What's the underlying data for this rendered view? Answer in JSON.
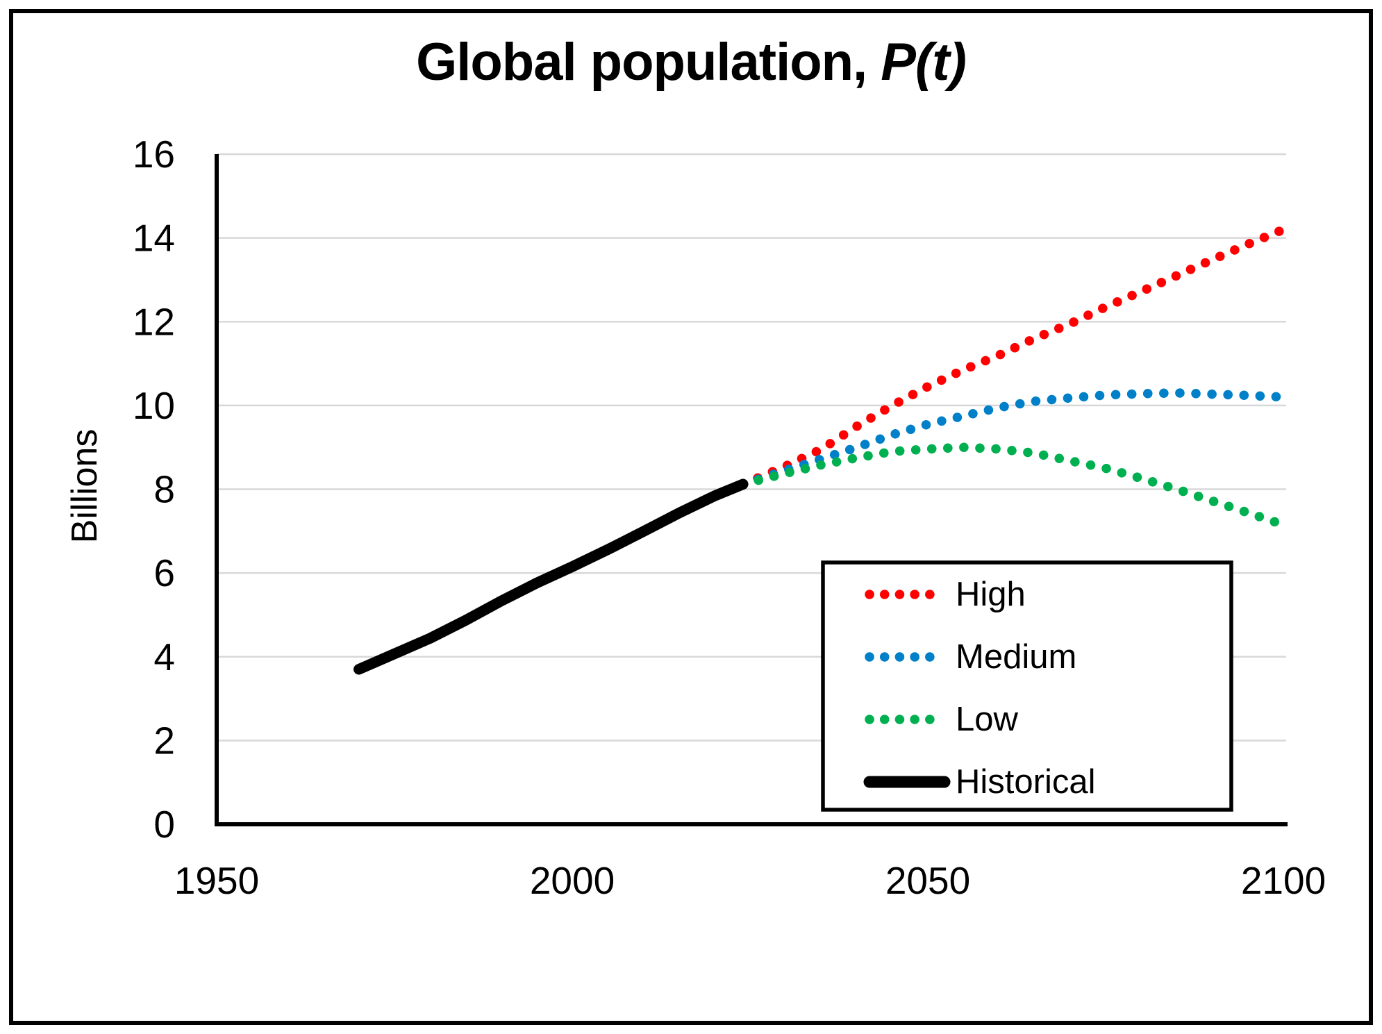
{
  "page": {
    "background_color": "#ffffff",
    "border_color": "#000000"
  },
  "chart_data": {
    "type": "line",
    "title_text": "Global population, ",
    "title_math": "P(t)",
    "ylabel": "Billions",
    "xlim": [
      1950,
      2100
    ],
    "ylim": [
      0,
      16
    ],
    "x_ticks": [
      1950,
      2000,
      2050,
      2100
    ],
    "y_ticks": [
      0,
      2,
      4,
      6,
      8,
      10,
      12,
      14,
      16
    ],
    "grid": "horizontal",
    "gridline_color": "#d8d8d8",
    "axis_color": "#000000",
    "legend": {
      "position": "inside-bottom-right",
      "labels": [
        "High",
        "Medium",
        "Low",
        "Historical"
      ]
    },
    "series": [
      {
        "name": "High",
        "color": "#ff0000",
        "style": "dotted",
        "points": [
          [
            2024,
            8.12
          ],
          [
            2030,
            8.55
          ],
          [
            2035,
            8.95
          ],
          [
            2040,
            9.5
          ],
          [
            2045,
            10.0
          ],
          [
            2050,
            10.45
          ],
          [
            2055,
            10.85
          ],
          [
            2060,
            11.2
          ],
          [
            2065,
            11.6
          ],
          [
            2070,
            11.95
          ],
          [
            2075,
            12.35
          ],
          [
            2080,
            12.72
          ],
          [
            2085,
            13.1
          ],
          [
            2090,
            13.48
          ],
          [
            2095,
            13.85
          ],
          [
            2100,
            14.2
          ]
        ]
      },
      {
        "name": "Medium",
        "color": "#0080c8",
        "style": "dotted",
        "points": [
          [
            2024,
            8.12
          ],
          [
            2030,
            8.45
          ],
          [
            2035,
            8.72
          ],
          [
            2040,
            9.0
          ],
          [
            2045,
            9.3
          ],
          [
            2050,
            9.55
          ],
          [
            2055,
            9.75
          ],
          [
            2060,
            9.95
          ],
          [
            2065,
            10.1
          ],
          [
            2070,
            10.18
          ],
          [
            2075,
            10.25
          ],
          [
            2080,
            10.28
          ],
          [
            2085,
            10.3
          ],
          [
            2090,
            10.27
          ],
          [
            2095,
            10.24
          ],
          [
            2100,
            10.2
          ]
        ]
      },
      {
        "name": "Low",
        "color": "#00b050",
        "style": "dotted",
        "points": [
          [
            2024,
            8.12
          ],
          [
            2030,
            8.38
          ],
          [
            2035,
            8.58
          ],
          [
            2040,
            8.75
          ],
          [
            2045,
            8.9
          ],
          [
            2050,
            8.96
          ],
          [
            2055,
            9.0
          ],
          [
            2060,
            8.96
          ],
          [
            2065,
            8.86
          ],
          [
            2070,
            8.68
          ],
          [
            2075,
            8.5
          ],
          [
            2080,
            8.26
          ],
          [
            2085,
            8.0
          ],
          [
            2090,
            7.72
          ],
          [
            2095,
            7.44
          ],
          [
            2100,
            7.15
          ]
        ]
      },
      {
        "name": "Historical",
        "color": "#000000",
        "style": "solid",
        "points": [
          [
            1970,
            3.7
          ],
          [
            1975,
            4.07
          ],
          [
            1980,
            4.44
          ],
          [
            1985,
            4.87
          ],
          [
            1990,
            5.33
          ],
          [
            1995,
            5.76
          ],
          [
            2000,
            6.15
          ],
          [
            2005,
            6.56
          ],
          [
            2010,
            6.99
          ],
          [
            2015,
            7.43
          ],
          [
            2020,
            7.84
          ],
          [
            2024,
            8.12
          ]
        ]
      }
    ]
  }
}
